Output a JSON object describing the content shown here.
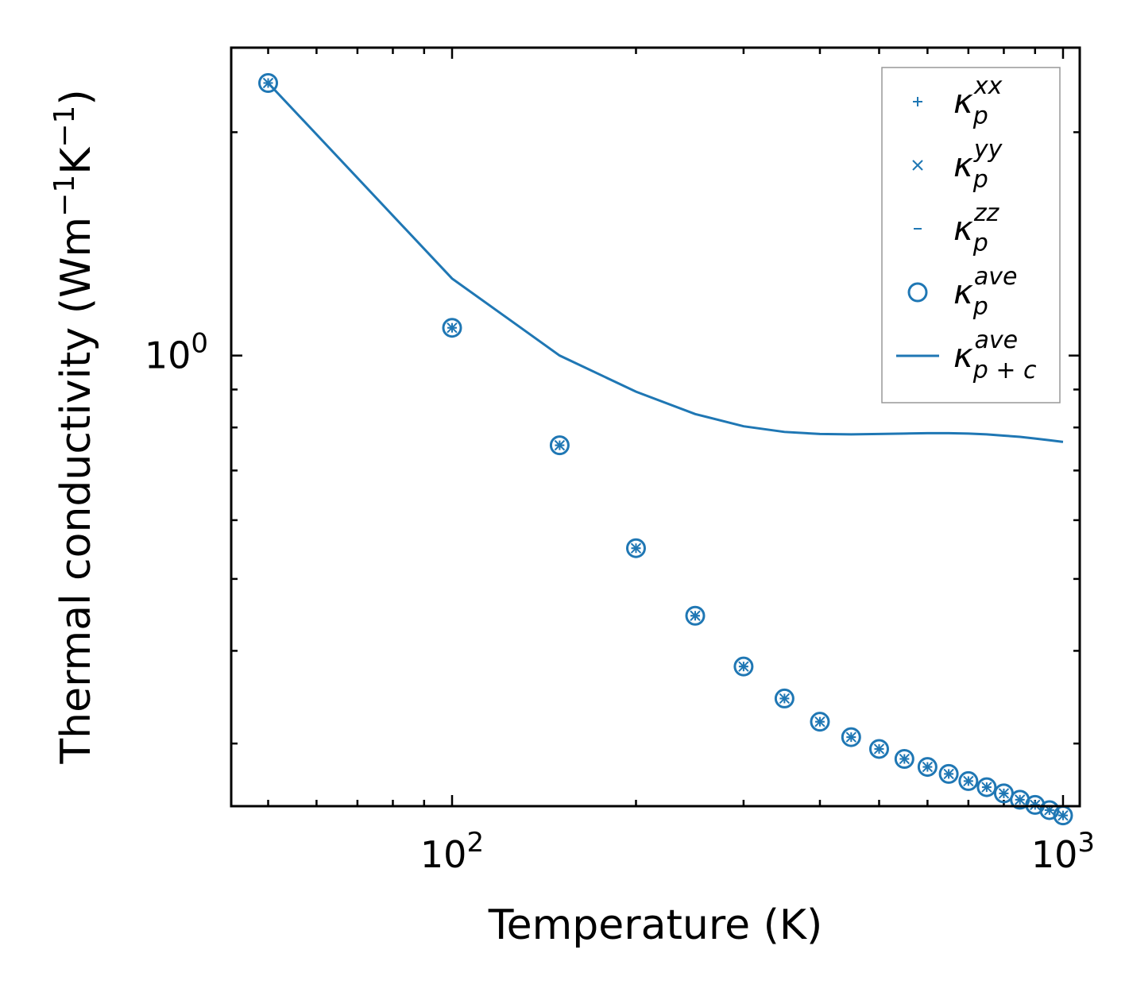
{
  "chart_data": {
    "type": "scatter",
    "title": "",
    "xlabel": "Temperature (K)",
    "ylabel_base": "Thermal conductivity (Wm",
    "ylabel_exp1": "−1",
    "ylabel_mid": "K",
    "ylabel_exp2": "−1",
    "ylabel_end": ")",
    "xscale": "log",
    "yscale": "log",
    "xlim": [
      43.5,
      1065
    ],
    "ylim": [
      0.247,
      2.6
    ],
    "x_ticks": [
      {
        "base": "10",
        "exp": "2",
        "value": 100
      },
      {
        "base": "10",
        "exp": "3",
        "value": 1000
      }
    ],
    "y_ticks": [
      {
        "base": "10",
        "exp": "0",
        "value": 1
      }
    ],
    "legend_position": "top-right",
    "color": "#1f77b4",
    "x": [
      50,
      100,
      150,
      200,
      250,
      300,
      350,
      400,
      450,
      500,
      550,
      600,
      650,
      700,
      750,
      800,
      850,
      900,
      950,
      1000
    ],
    "series": [
      {
        "name": "kappa_p_xx",
        "label_main": "κ",
        "label_sub": "p",
        "label_sup": "xx",
        "marker": "plus",
        "values": [
          2.33,
          1.09,
          0.757,
          0.55,
          0.446,
          0.381,
          0.345,
          0.321,
          0.306,
          0.295,
          0.286,
          0.279,
          0.273,
          0.267,
          0.262,
          0.257,
          0.252,
          0.248,
          0.244,
          0.24
        ]
      },
      {
        "name": "kappa_p_yy",
        "label_main": "κ",
        "label_sub": "p",
        "label_sup": "yy",
        "marker": "x",
        "values": [
          2.33,
          1.09,
          0.757,
          0.55,
          0.446,
          0.381,
          0.345,
          0.321,
          0.306,
          0.295,
          0.286,
          0.279,
          0.273,
          0.267,
          0.262,
          0.257,
          0.252,
          0.248,
          0.244,
          0.24
        ]
      },
      {
        "name": "kappa_p_zz",
        "label_main": "κ",
        "label_sub": "p",
        "label_sup": "zz",
        "marker": "hline",
        "values": [
          2.33,
          1.09,
          0.757,
          0.55,
          0.446,
          0.381,
          0.345,
          0.321,
          0.306,
          0.295,
          0.286,
          0.279,
          0.273,
          0.267,
          0.262,
          0.257,
          0.252,
          0.248,
          0.244,
          0.24
        ]
      },
      {
        "name": "kappa_p_ave",
        "label_main": "κ",
        "label_sub": "p",
        "label_sup": "ave",
        "marker": "circle",
        "values": [
          2.33,
          1.09,
          0.757,
          0.55,
          0.446,
          0.381,
          0.345,
          0.321,
          0.306,
          0.295,
          0.286,
          0.279,
          0.273,
          0.267,
          0.262,
          0.257,
          0.252,
          0.248,
          0.244,
          0.24
        ]
      },
      {
        "name": "kappa_pc_ave",
        "label_main": "κ",
        "label_sub": "p + c",
        "label_sup": "ave",
        "marker": "line",
        "values": [
          2.33,
          1.27,
          1.0,
          0.894,
          0.834,
          0.803,
          0.789,
          0.784,
          0.783,
          0.784,
          0.785,
          0.786,
          0.786,
          0.785,
          0.783,
          0.78,
          0.777,
          0.773,
          0.769,
          0.765
        ]
      }
    ]
  }
}
